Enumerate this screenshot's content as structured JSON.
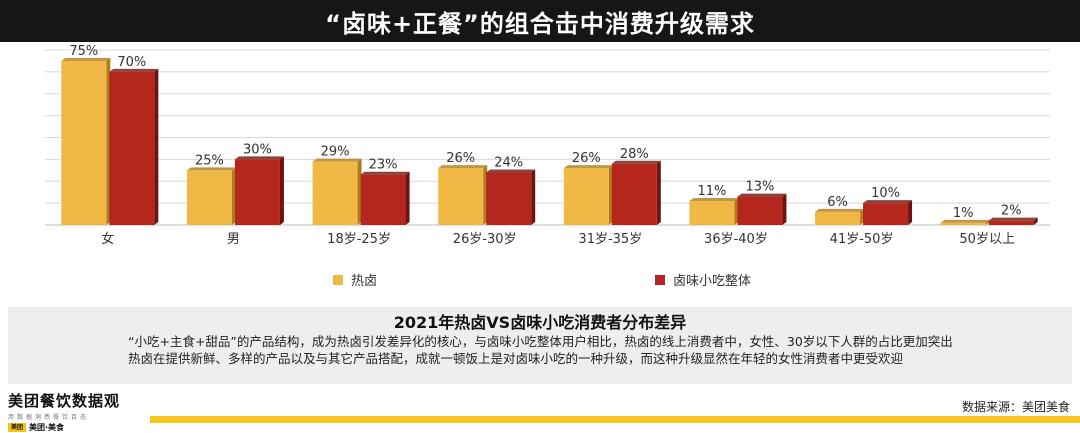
{
  "header": {
    "title": "“卤味+正餐”的组合击中消费升级需求"
  },
  "chart_data": {
    "type": "bar",
    "categories": [
      "女",
      "男",
      "18岁-25岁",
      "26岁-30岁",
      "31岁-35岁",
      "36岁-40岁",
      "41岁-50岁",
      "50岁以上"
    ],
    "series": [
      {
        "name": "热卤",
        "values": [
          75,
          25,
          29,
          26,
          26,
          11,
          6,
          1
        ],
        "labels": [
          "75%",
          "25%",
          "29%",
          "26%",
          "26%",
          "11%",
          "6%",
          "1%"
        ],
        "color": "#f0b845"
      },
      {
        "name": "卤味小吃整体",
        "values": [
          70,
          30,
          23,
          24,
          28,
          13,
          10,
          2
        ],
        "labels": [
          "70%",
          "30%",
          "23%",
          "24%",
          "28%",
          "13%",
          "10%",
          "2%"
        ],
        "color": "#b5261c"
      }
    ],
    "ylim": [
      0,
      80
    ],
    "grid": true,
    "legend_position": "bottom-center"
  },
  "summary": {
    "title": "2021年热卤VS卤味小吃消费者分布差异",
    "lines": [
      "“小吃+主食+甜品”的产品结构，成为热卤引发差异化的核心，与卤味小吃整体用户相比，热卤的线上消费者中，女性、30岁以下人群的占比更加突出",
      "热卤在提供新鲜、多样的产品以及与其它产品搭配，成就一顿饭上是对卤味小吃的一种升级，而这种升级显然在年轻的女性消费者中更受欢迎"
    ]
  },
  "footer": {
    "brand_name": "美团餐饮数据观",
    "brand_slogan": "用数据洞悉餐饮百态",
    "brand_chip": "美团",
    "brand_sub": "美团·美食",
    "source": "数据来源：美团美食"
  }
}
